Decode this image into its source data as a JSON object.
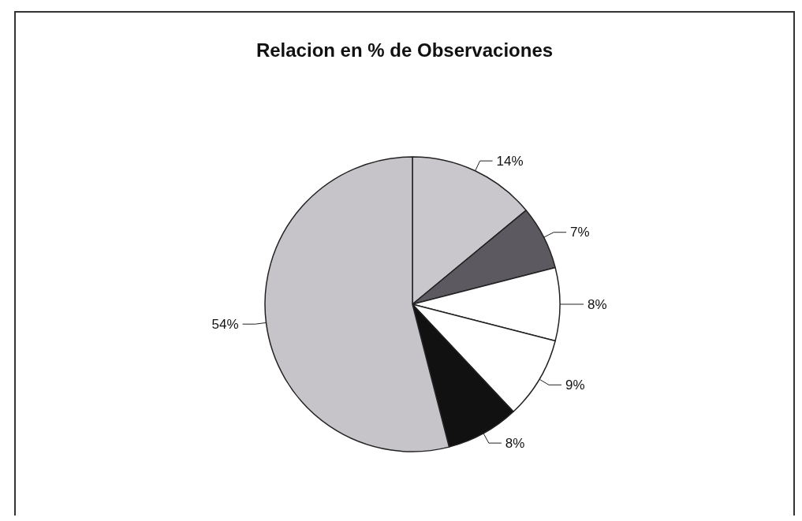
{
  "chart_data": {
    "type": "pie",
    "title": "Relacion en % de Observaciones",
    "categories": [
      null,
      null,
      null,
      null,
      null,
      null
    ],
    "values": [
      14,
      7,
      8,
      9,
      8,
      54
    ],
    "value_labels": [
      "14%",
      "7%",
      "8%",
      "9%",
      "8%",
      "54%"
    ],
    "colors": [
      "#c9c7cc",
      "#5c5a60",
      "#ffffff",
      "#ffffff",
      "#111111",
      "#c6c4c9"
    ],
    "legend": false
  }
}
